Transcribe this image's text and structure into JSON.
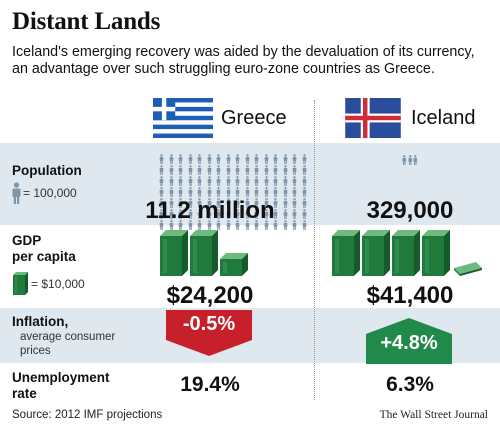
{
  "title": "Distant Lands",
  "subtitle": "Iceland's emerging recovery was aided by the devaluation of its currency, an advantage over such struggling euro-zone countries as Greece.",
  "columns": [
    {
      "name": "Greece",
      "flag_icon": "greece-flag-icon"
    },
    {
      "name": "Iceland",
      "flag_icon": "iceland-flag-icon"
    }
  ],
  "rows": {
    "population": {
      "label": "Population",
      "legend": "= 100,000",
      "greece": "11.2 million",
      "iceland": "329,000",
      "greece_icon_count": 112,
      "iceland_icon_count": 3
    },
    "gdp": {
      "label": "GDP",
      "label2": "per capita",
      "legend": "= $10,000",
      "greece": "$24,200",
      "iceland": "$41,400",
      "greece_stacks": 2.4,
      "iceland_stacks": 4.1
    },
    "inflation": {
      "label": "Inflation,",
      "sublabel": "average consumer prices",
      "greece": "-0.5%",
      "iceland": "+4.8%"
    },
    "unemployment": {
      "label": "Unemployment",
      "label2": "rate",
      "greece": "19.4%",
      "iceland": "6.3%"
    }
  },
  "colors": {
    "band": "#dfe7ef",
    "person": "#7f95ab",
    "money_dark": "#1f7a3c",
    "money_light": "#6cbb7c",
    "down": "#c8202b",
    "up": "#21894a",
    "greece_blue": "#1d5fb5",
    "iceland_blue": "#2a4d9b",
    "iceland_red": "#d12b35"
  },
  "source": "Source: 2012 IMF projections",
  "credit": "The Wall Street Journal"
}
